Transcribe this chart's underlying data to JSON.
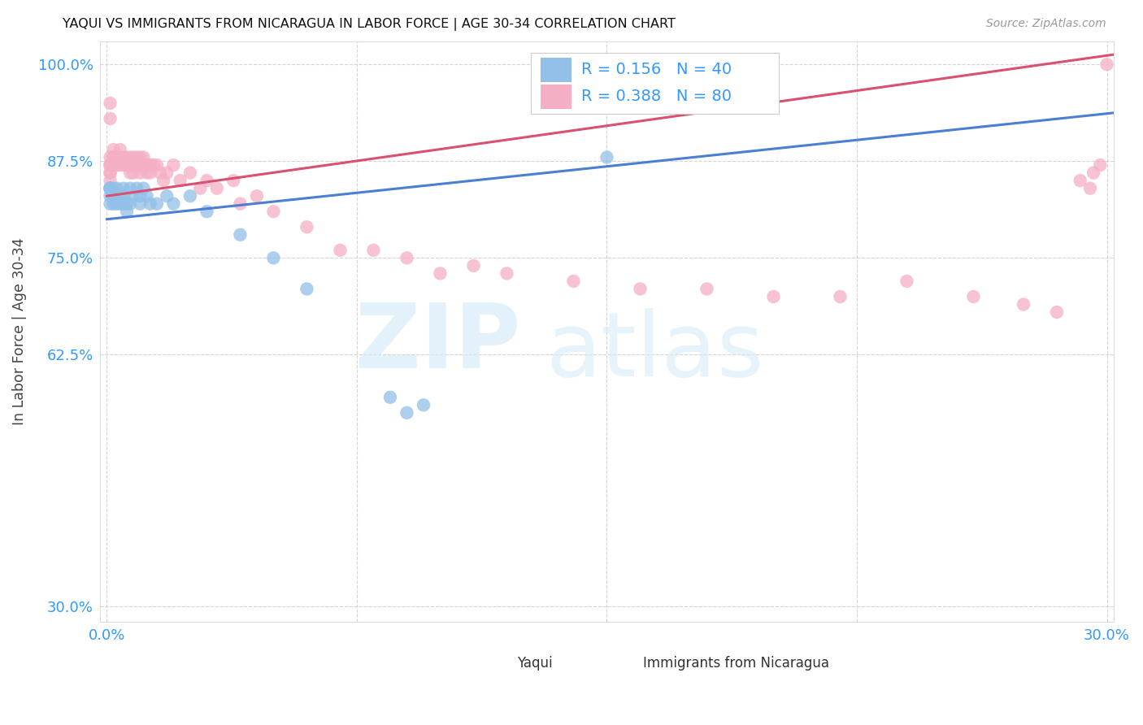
{
  "title": "YAQUI VS IMMIGRANTS FROM NICARAGUA IN LABOR FORCE | AGE 30-34 CORRELATION CHART",
  "source": "Source: ZipAtlas.com",
  "ylabel": "In Labor Force | Age 30-34",
  "xlim": [
    -0.002,
    0.302
  ],
  "ylim": [
    0.28,
    1.03
  ],
  "xticks": [
    0.0,
    0.075,
    0.15,
    0.225,
    0.3
  ],
  "xtick_labels": [
    "0.0%",
    "",
    "",
    "",
    "30.0%"
  ],
  "yticks": [
    0.3,
    0.625,
    0.75,
    0.875,
    1.0
  ],
  "ytick_labels": [
    "30.0%",
    "62.5%",
    "75.0%",
    "87.5%",
    "100.0%"
  ],
  "legend_label1": "Yaqui",
  "legend_label2": "Immigrants from Nicaragua",
  "r1": 0.156,
  "n1": 40,
  "r2": 0.388,
  "n2": 80,
  "color1": "#92c0e8",
  "color2": "#f5afc5",
  "line_color1": "#4a7fd4",
  "line_color2": "#d95070",
  "watermark_zip_color": "#dae8f5",
  "watermark_atlas_color": "#dae8f5",
  "yaqui_x": [
    0.001,
    0.001,
    0.001,
    0.001,
    0.001,
    0.001,
    0.001,
    0.002,
    0.002,
    0.002,
    0.003,
    0.003,
    0.004,
    0.004,
    0.005,
    0.005,
    0.005,
    0.006,
    0.006,
    0.007,
    0.007,
    0.008,
    0.009,
    0.01,
    0.01,
    0.011,
    0.012,
    0.013,
    0.015,
    0.018,
    0.02,
    0.025,
    0.03,
    0.04,
    0.05,
    0.06,
    0.085,
    0.09,
    0.095,
    0.15
  ],
  "yaqui_y": [
    0.84,
    0.84,
    0.84,
    0.84,
    0.84,
    0.83,
    0.82,
    0.82,
    0.84,
    0.83,
    0.82,
    0.84,
    0.83,
    0.82,
    0.84,
    0.82,
    0.83,
    0.82,
    0.81,
    0.84,
    0.82,
    0.83,
    0.84,
    0.83,
    0.82,
    0.84,
    0.83,
    0.82,
    0.82,
    0.83,
    0.82,
    0.83,
    0.81,
    0.78,
    0.75,
    0.71,
    0.57,
    0.55,
    0.56,
    0.88
  ],
  "nicaragua_x": [
    0.001,
    0.001,
    0.001,
    0.001,
    0.001,
    0.001,
    0.001,
    0.001,
    0.001,
    0.002,
    0.002,
    0.002,
    0.002,
    0.003,
    0.003,
    0.003,
    0.003,
    0.004,
    0.004,
    0.004,
    0.005,
    0.005,
    0.005,
    0.006,
    0.006,
    0.006,
    0.007,
    0.007,
    0.007,
    0.007,
    0.008,
    0.008,
    0.008,
    0.009,
    0.009,
    0.01,
    0.01,
    0.01,
    0.011,
    0.011,
    0.012,
    0.012,
    0.013,
    0.013,
    0.014,
    0.015,
    0.016,
    0.017,
    0.018,
    0.02,
    0.022,
    0.025,
    0.028,
    0.03,
    0.033,
    0.038,
    0.04,
    0.045,
    0.05,
    0.06,
    0.07,
    0.08,
    0.09,
    0.1,
    0.11,
    0.12,
    0.14,
    0.16,
    0.18,
    0.2,
    0.22,
    0.24,
    0.26,
    0.275,
    0.285,
    0.292,
    0.295,
    0.296,
    0.298,
    0.3
  ],
  "nicaragua_y": [
    0.95,
    0.93,
    0.87,
    0.88,
    0.87,
    0.86,
    0.86,
    0.85,
    0.87,
    0.88,
    0.89,
    0.87,
    0.88,
    0.88,
    0.87,
    0.88,
    0.87,
    0.88,
    0.87,
    0.89,
    0.88,
    0.87,
    0.88,
    0.87,
    0.88,
    0.87,
    0.88,
    0.87,
    0.86,
    0.87,
    0.87,
    0.88,
    0.86,
    0.87,
    0.88,
    0.87,
    0.88,
    0.86,
    0.87,
    0.88,
    0.87,
    0.86,
    0.87,
    0.86,
    0.87,
    0.87,
    0.86,
    0.85,
    0.86,
    0.87,
    0.85,
    0.86,
    0.84,
    0.85,
    0.84,
    0.85,
    0.82,
    0.83,
    0.81,
    0.79,
    0.76,
    0.76,
    0.75,
    0.73,
    0.74,
    0.73,
    0.72,
    0.71,
    0.71,
    0.7,
    0.7,
    0.72,
    0.7,
    0.69,
    0.68,
    0.85,
    0.84,
    0.86,
    0.87,
    1.0
  ]
}
